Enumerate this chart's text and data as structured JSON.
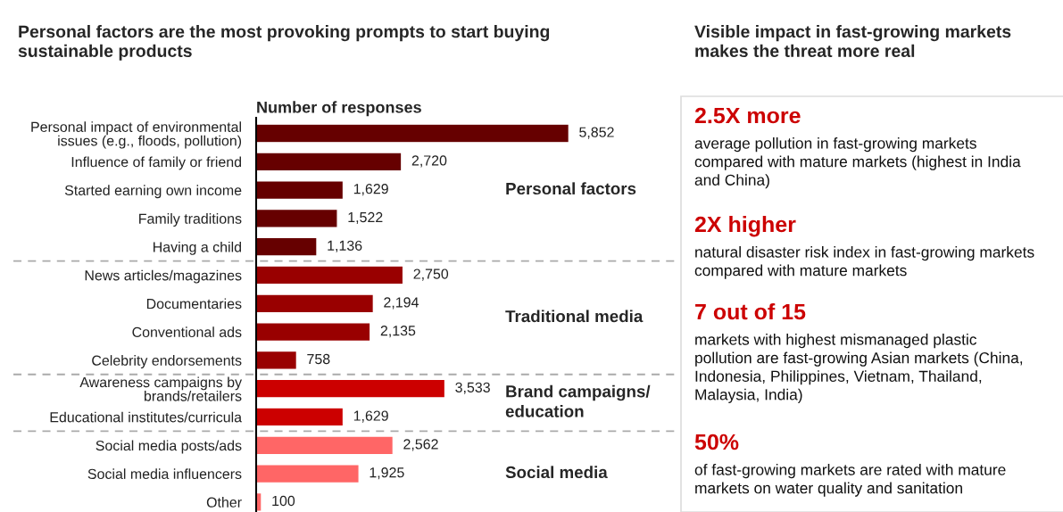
{
  "chart_data": [
    {
      "type": "bar",
      "orientation": "horizontal",
      "title": "Personal factors are the most provoking prompts to start buying sustainable products",
      "xlabel": "Number of responses",
      "categories": [
        "Personal impact of environmental\nissues (e.g., floods, pollution)",
        "Influence of family or friend",
        "Started earning own income",
        "Family traditions",
        "Having a child",
        "News articles/magazines",
        "Documentaries",
        "Conventional ads",
        "Celebrity endorsements",
        "Awareness campaigns by\nbrands/retailers",
        "Educational institutes/curricula",
        "Social media posts/ads",
        "Social media influencers",
        "Other"
      ],
      "values": [
        5852,
        2720,
        1629,
        1522,
        1136,
        2750,
        2194,
        2135,
        758,
        3533,
        1629,
        2562,
        1925,
        100
      ],
      "value_labels": [
        "5,852",
        "2,720",
        "1,629",
        "1,522",
        "1,136",
        "2,750",
        "2,194",
        "2,135",
        "758",
        "3,533",
        "1,629",
        "2,562",
        "1,925",
        "100"
      ],
      "colors": [
        "#660000",
        "#660000",
        "#660000",
        "#660000",
        "#660000",
        "#990000",
        "#990000",
        "#990000",
        "#990000",
        "#cc0000",
        "#cc0000",
        "#ff6666",
        "#ff6666",
        "#ff6666"
      ],
      "tick_labels": "y",
      "annotations": [
        "Personal factors",
        "Traditional media",
        "Brand campaigns/ education",
        "Social media"
      ]
    },
    {
      "type": "other",
      "title": "Visible impact in fast-growing markets makes the threat more real",
      "annotations": [
        "2.5X more",
        "average pollution in fast-growing markets compared with mature markets (highest in India and China)",
        "2X higher",
        "natural disaster risk index in fast-growing markets compared with mature markets",
        "7 out of 15",
        "markets with highest mismanaged plastic pollution are fast-growing Asian markets (China, Indonesia, Philippines, Vietnam, Thailand, Malaysia, India)",
        "50%",
        "of fast-growing markets are rated with mature markets on water quality and sanitation"
      ]
    }
  ]
}
